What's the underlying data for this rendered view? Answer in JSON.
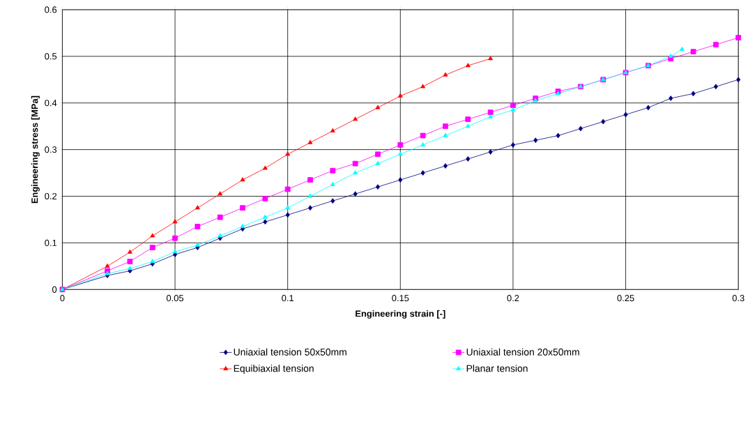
{
  "chart_data": {
    "type": "line",
    "xlabel": "Engineering strain [-]",
    "ylabel": "Engineering stress [MPa]",
    "xlim": [
      0,
      0.3
    ],
    "ylim": [
      0,
      0.6
    ],
    "xticks": [
      0,
      0.05,
      0.1,
      0.15,
      0.2,
      0.25,
      0.3
    ],
    "yticks": [
      0,
      0.1,
      0.2,
      0.3,
      0.4,
      0.5,
      0.6
    ],
    "grid": true,
    "legend": "bottom",
    "line_style": "solid",
    "series": [
      {
        "name": "Uniaxial tension 50x50mm",
        "color": "#000080",
        "marker": "diamond",
        "x": [
          0,
          0.02,
          0.03,
          0.04,
          0.05,
          0.06,
          0.07,
          0.08,
          0.09,
          0.1,
          0.11,
          0.12,
          0.13,
          0.14,
          0.15,
          0.16,
          0.17,
          0.18,
          0.19,
          0.2,
          0.21,
          0.22,
          0.23,
          0.24,
          0.25,
          0.26,
          0.27,
          0.28,
          0.29,
          0.3
        ],
        "values": [
          0,
          0.03,
          0.04,
          0.055,
          0.075,
          0.09,
          0.11,
          0.13,
          0.145,
          0.16,
          0.175,
          0.19,
          0.205,
          0.22,
          0.235,
          0.25,
          0.265,
          0.28,
          0.295,
          0.31,
          0.32,
          0.33,
          0.345,
          0.36,
          0.375,
          0.39,
          0.41,
          0.42,
          0.435,
          0.45
        ]
      },
      {
        "name": "Uniaxial tension 20x50mm",
        "color": "#ff00ff",
        "marker": "square",
        "x": [
          0,
          0.02,
          0.03,
          0.04,
          0.05,
          0.06,
          0.07,
          0.08,
          0.09,
          0.1,
          0.11,
          0.12,
          0.13,
          0.14,
          0.15,
          0.16,
          0.17,
          0.18,
          0.19,
          0.2,
          0.21,
          0.22,
          0.23,
          0.24,
          0.25,
          0.26,
          0.27,
          0.28,
          0.29,
          0.3
        ],
        "values": [
          0,
          0.04,
          0.06,
          0.09,
          0.11,
          0.135,
          0.155,
          0.175,
          0.195,
          0.215,
          0.235,
          0.255,
          0.27,
          0.29,
          0.31,
          0.33,
          0.35,
          0.365,
          0.38,
          0.395,
          0.41,
          0.425,
          0.435,
          0.45,
          0.465,
          0.48,
          0.495,
          0.51,
          0.525,
          0.54
        ]
      },
      {
        "name": "Equibiaxial tension",
        "color": "#ff0000",
        "marker": "triangle",
        "x": [
          0,
          0.02,
          0.03,
          0.04,
          0.05,
          0.06,
          0.07,
          0.08,
          0.09,
          0.1,
          0.11,
          0.12,
          0.13,
          0.14,
          0.15,
          0.16,
          0.17,
          0.18,
          0.19
        ],
        "values": [
          0,
          0.05,
          0.08,
          0.115,
          0.145,
          0.175,
          0.205,
          0.235,
          0.26,
          0.29,
          0.315,
          0.34,
          0.365,
          0.39,
          0.415,
          0.435,
          0.46,
          0.48,
          0.495
        ]
      },
      {
        "name": "Planar tension",
        "color": "#00ffff",
        "marker": "triangle",
        "x": [
          0,
          0.02,
          0.03,
          0.04,
          0.05,
          0.06,
          0.07,
          0.08,
          0.09,
          0.1,
          0.11,
          0.12,
          0.13,
          0.14,
          0.15,
          0.16,
          0.17,
          0.18,
          0.19,
          0.2,
          0.21,
          0.22,
          0.23,
          0.24,
          0.25,
          0.26,
          0.27,
          0.275
        ],
        "values": [
          0,
          0.034,
          0.045,
          0.06,
          0.081,
          0.095,
          0.115,
          0.135,
          0.155,
          0.175,
          0.2,
          0.225,
          0.25,
          0.27,
          0.29,
          0.31,
          0.33,
          0.35,
          0.37,
          0.385,
          0.405,
          0.42,
          0.435,
          0.45,
          0.465,
          0.48,
          0.5,
          0.515
        ]
      }
    ]
  }
}
